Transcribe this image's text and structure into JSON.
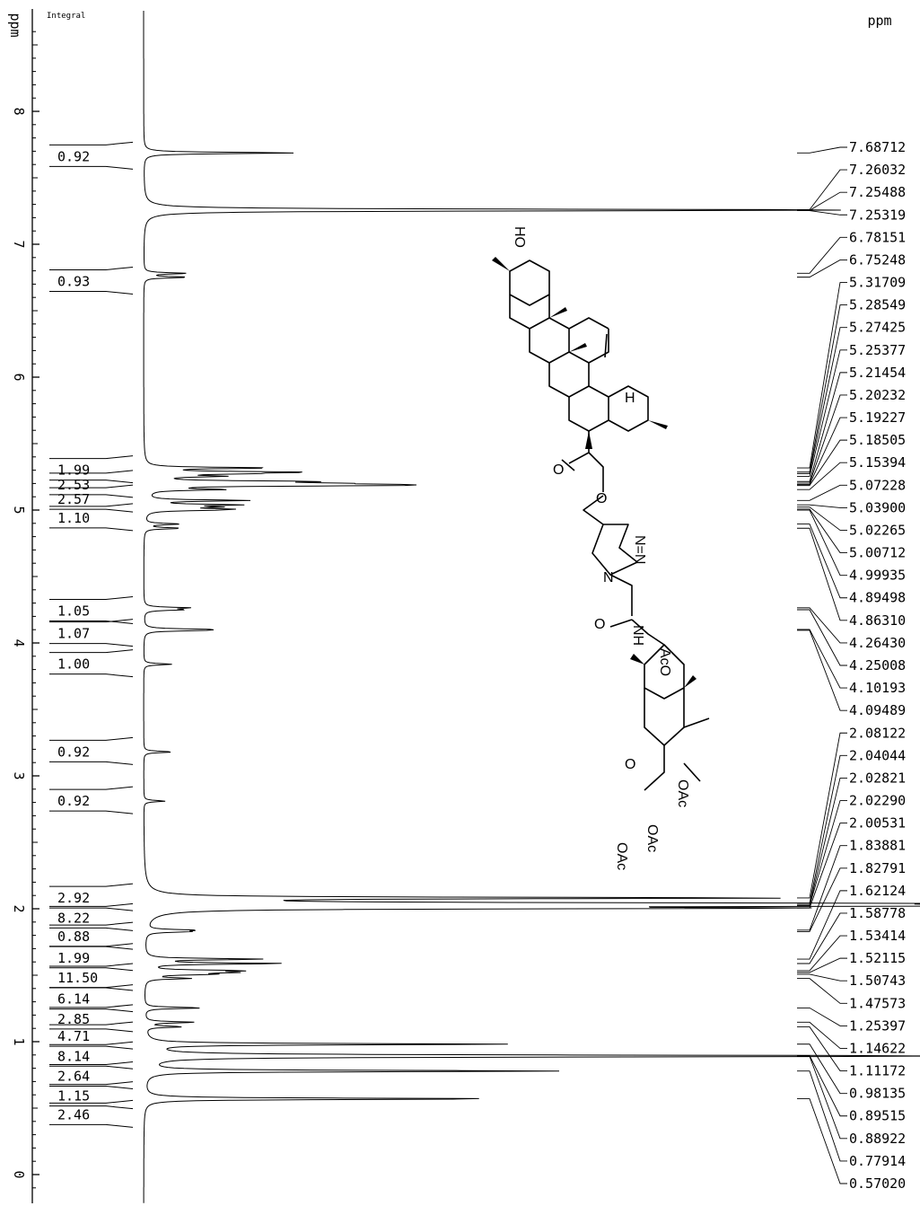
{
  "chart_data": {
    "type": "line",
    "title": "",
    "xlabel": "ppm",
    "ylabel": "ppm",
    "integral_label": "Integral",
    "axis_ticks": [
      "8",
      "7",
      "6",
      "5",
      "4",
      "3",
      "2",
      "1",
      "0"
    ],
    "ylim": [
      8.65,
      -0.15
    ],
    "integrals": [
      {
        "ppm": 7.66,
        "value": "0.92"
      },
      {
        "ppm": 6.72,
        "value": "0.93"
      },
      {
        "ppm": 5.3,
        "value": "1.99"
      },
      {
        "ppm": 5.19,
        "value": "2.53"
      },
      {
        "ppm": 5.08,
        "value": "2.57"
      },
      {
        "ppm": 4.94,
        "value": "1.10"
      },
      {
        "ppm": 4.24,
        "value": "1.05"
      },
      {
        "ppm": 4.07,
        "value": "1.07"
      },
      {
        "ppm": 3.84,
        "value": "1.00"
      },
      {
        "ppm": 3.18,
        "value": "0.92"
      },
      {
        "ppm": 2.81,
        "value": "0.92"
      },
      {
        "ppm": 2.08,
        "value": "2.92"
      },
      {
        "ppm": 1.93,
        "value": "8.22"
      },
      {
        "ppm": 1.79,
        "value": "0.88"
      },
      {
        "ppm": 1.63,
        "value": "1.99"
      },
      {
        "ppm": 1.48,
        "value": "11.50"
      },
      {
        "ppm": 1.32,
        "value": "6.14"
      },
      {
        "ppm": 1.17,
        "value": "2.85"
      },
      {
        "ppm": 1.04,
        "value": "4.71"
      },
      {
        "ppm": 0.89,
        "value": "8.14"
      },
      {
        "ppm": 0.74,
        "value": "2.64"
      },
      {
        "ppm": 0.59,
        "value": "1.15"
      },
      {
        "ppm": 0.45,
        "value": "2.46"
      }
    ],
    "peak_labels": [
      "7.68712",
      "7.26032",
      "7.25488",
      "7.25319",
      "6.78151",
      "6.75248",
      "5.31709",
      "5.28549",
      "5.27425",
      "5.25377",
      "5.21454",
      "5.20232",
      "5.19227",
      "5.18505",
      "5.15394",
      "5.07228",
      "5.03900",
      "5.02265",
      "5.00712",
      "4.99935",
      "4.89498",
      "4.86310",
      "4.26430",
      "4.25008",
      "4.10193",
      "4.09489",
      "2.08122",
      "2.04044",
      "2.02821",
      "2.02290",
      "2.00531",
      "1.83881",
      "1.82791",
      "1.62124",
      "1.58778",
      "1.53414",
      "1.52115",
      "1.50743",
      "1.47573",
      "1.25397",
      "1.14622",
      "1.11172",
      "0.98135",
      "0.89515",
      "0.88922",
      "0.77914",
      "0.57020"
    ],
    "peaks": [
      {
        "ppm": 7.687,
        "h": 0.21
      },
      {
        "ppm": 7.26,
        "h": 0.6
      },
      {
        "ppm": 7.255,
        "h": 0.55
      },
      {
        "ppm": 6.781,
        "h": 0.06
      },
      {
        "ppm": 6.752,
        "h": 0.06
      },
      {
        "ppm": 5.317,
        "h": 0.17
      },
      {
        "ppm": 5.285,
        "h": 0.2
      },
      {
        "ppm": 5.274,
        "h": 0.1
      },
      {
        "ppm": 5.254,
        "h": 0.09
      },
      {
        "ppm": 5.215,
        "h": 0.19
      },
      {
        "ppm": 5.202,
        "h": 0.17
      },
      {
        "ppm": 5.192,
        "h": 0.21
      },
      {
        "ppm": 5.185,
        "h": 0.24
      },
      {
        "ppm": 5.154,
        "h": 0.1
      },
      {
        "ppm": 5.072,
        "h": 0.14
      },
      {
        "ppm": 5.039,
        "h": 0.12
      },
      {
        "ppm": 5.023,
        "h": 0.08
      },
      {
        "ppm": 5.007,
        "h": 0.09
      },
      {
        "ppm": 4.999,
        "h": 0.06
      },
      {
        "ppm": 4.895,
        "h": 0.05
      },
      {
        "ppm": 4.863,
        "h": 0.05
      },
      {
        "ppm": 4.264,
        "h": 0.06
      },
      {
        "ppm": 4.25,
        "h": 0.05
      },
      {
        "ppm": 4.102,
        "h": 0.07
      },
      {
        "ppm": 4.095,
        "h": 0.06
      },
      {
        "ppm": 3.84,
        "h": 0.04
      },
      {
        "ppm": 3.18,
        "h": 0.04
      },
      {
        "ppm": 2.81,
        "h": 0.03
      },
      {
        "ppm": 2.081,
        "h": 0.88
      },
      {
        "ppm": 2.04,
        "h": 0.86
      },
      {
        "ppm": 2.028,
        "h": 0.84
      },
      {
        "ppm": 2.023,
        "h": 0.82
      },
      {
        "ppm": 2.005,
        "h": 0.8
      },
      {
        "ppm": 1.839,
        "h": 0.06
      },
      {
        "ppm": 1.828,
        "h": 0.05
      },
      {
        "ppm": 1.621,
        "h": 0.16
      },
      {
        "ppm": 1.588,
        "h": 0.19
      },
      {
        "ppm": 1.534,
        "h": 0.12
      },
      {
        "ppm": 1.521,
        "h": 0.1
      },
      {
        "ppm": 1.507,
        "h": 0.08
      },
      {
        "ppm": 1.476,
        "h": 0.06
      },
      {
        "ppm": 1.254,
        "h": 0.08
      },
      {
        "ppm": 1.146,
        "h": 0.07
      },
      {
        "ppm": 1.112,
        "h": 0.05
      },
      {
        "ppm": 0.981,
        "h": 0.5
      },
      {
        "ppm": 0.895,
        "h": 0.7
      },
      {
        "ppm": 0.889,
        "h": 0.68
      },
      {
        "ppm": 0.779,
        "h": 0.58
      },
      {
        "ppm": 0.57,
        "h": 0.5
      }
    ]
  },
  "structure_labels": {
    "ho": "HO",
    "h": "H",
    "o_ester_carbonyl": "O",
    "o_ester": "O",
    "n_eq_n": "N=N",
    "n": "N",
    "o_amide": "O",
    "nh": "NH",
    "aco": "AcO",
    "o_ring": "O",
    "oac_1": "OAc",
    "oac_2": "OAc",
    "oac_3": "OAc"
  }
}
